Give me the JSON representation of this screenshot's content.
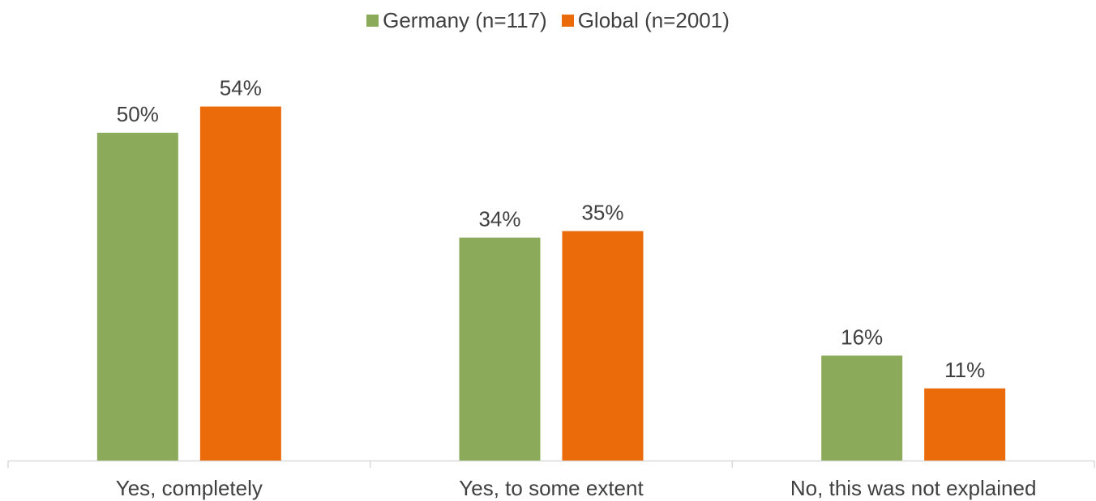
{
  "chart_data": {
    "type": "bar",
    "categories": [
      "Yes, completely",
      "Yes, to some extent",
      "No, this was not explained"
    ],
    "series": [
      {
        "name": "Germany (n=117)",
        "values": [
          50,
          34,
          16
        ],
        "labels": [
          "50%",
          "34%",
          "16%"
        ],
        "color": "#8BAB5B"
      },
      {
        "name": "Global (n=2001)",
        "values": [
          54,
          35,
          11
        ],
        "labels": [
          "54%",
          "35%",
          "11%"
        ],
        "color": "#EB6A0A"
      }
    ],
    "ylim": [
      0,
      60
    ],
    "legend": "top-center",
    "grid": false
  }
}
